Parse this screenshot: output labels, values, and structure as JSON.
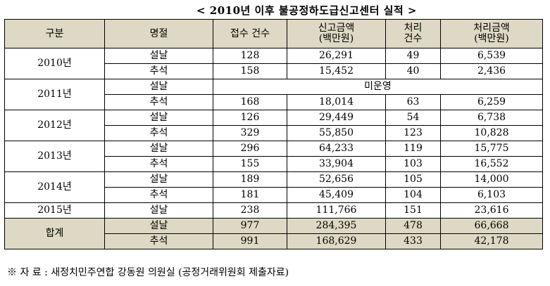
{
  "title": "< 2010년 이후 불공정하도급신고센터 실적 >",
  "headers": {
    "category": "구분",
    "holiday": "명절",
    "count": "접수 건수",
    "amount_1": "신고금액",
    "amount_2": "(백만원)",
    "processed_1": "처리",
    "processed_2": "건수",
    "processed_amount_1": "처리금액",
    "processed_amount_2": "(백만원)"
  },
  "rows": [
    {
      "year": "2010년",
      "holiday": "설날",
      "count": "128",
      "amount": "26,291",
      "processed": "49",
      "processed_amount": "6,539"
    },
    {
      "holiday": "추석",
      "count": "158",
      "amount": "15,452",
      "processed": "40",
      "processed_amount": "2,436"
    },
    {
      "year": "2011년",
      "holiday": "설날",
      "note": "미운영"
    },
    {
      "holiday": "추석",
      "count": "168",
      "amount": "18,014",
      "processed": "63",
      "processed_amount": "6,259"
    },
    {
      "year": "2012년",
      "holiday": "설날",
      "count": "126",
      "amount": "29,449",
      "processed": "54",
      "processed_amount": "6,738"
    },
    {
      "holiday": "추석",
      "count": "329",
      "amount": "55,850",
      "processed": "123",
      "processed_amount": "10,828"
    },
    {
      "year": "2013년",
      "holiday": "설날",
      "count": "296",
      "amount": "64,233",
      "processed": "119",
      "processed_amount": "15,775"
    },
    {
      "holiday": "추석",
      "count": "155",
      "amount": "33,904",
      "processed": "103",
      "processed_amount": "16,552"
    },
    {
      "year": "2014년",
      "holiday": "설날",
      "count": "189",
      "amount": "52,656",
      "processed": "105",
      "processed_amount": "14,000"
    },
    {
      "holiday": "추석",
      "count": "181",
      "amount": "45,409",
      "processed": "104",
      "processed_amount": "6,103"
    },
    {
      "year": "2015년",
      "holiday": "설날",
      "count": "238",
      "amount": "111,766",
      "processed": "151",
      "processed_amount": "23,616"
    }
  ],
  "total": {
    "label": "합계",
    "rows": [
      {
        "holiday": "설날",
        "count": "977",
        "amount": "284,395",
        "processed": "478",
        "processed_amount": "66,668"
      },
      {
        "holiday": "추석",
        "count": "991",
        "amount": "168,629",
        "processed": "433",
        "processed_amount": "42,178"
      }
    ]
  },
  "source": "※ 자 료 : 새정치민주연합 강동원 의원실 (공정거래위원회 제출자료)"
}
